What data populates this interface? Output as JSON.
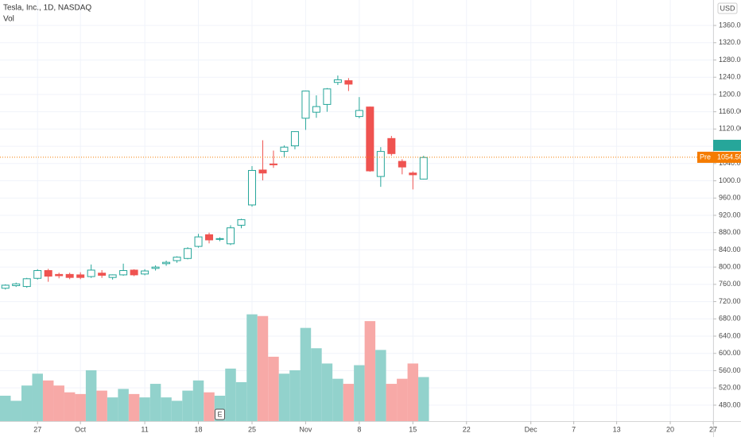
{
  "chart_data": {
    "type": "candlestick",
    "title": "Tesla, Inc., 1D, NASDAQ",
    "volume_label": "Vol",
    "currency": "USD",
    "x": [
      0,
      1,
      2,
      3,
      4,
      5,
      6,
      7,
      8,
      9,
      10,
      11,
      12,
      13,
      14,
      15,
      16,
      17,
      18,
      19,
      20,
      21,
      22,
      23,
      24,
      25,
      26,
      27,
      28,
      29,
      30,
      31,
      32,
      33,
      34,
      35,
      36,
      37,
      38,
      39
    ],
    "open": [
      751,
      757,
      755,
      774,
      792,
      783,
      783,
      782,
      778,
      786,
      776,
      782,
      793,
      784,
      797,
      808,
      815,
      820,
      848,
      875,
      865,
      854,
      897,
      944,
      1025,
      1039,
      1068,
      1081,
      1145,
      1159,
      1177,
      1228,
      1232,
      1149,
      1171,
      1010,
      1098,
      1045,
      1018,
      1004
    ],
    "high": [
      760,
      764,
      775,
      795,
      796,
      787,
      787,
      788,
      806,
      793,
      783,
      808,
      795,
      795,
      804,
      815,
      825,
      846,
      877,
      880,
      869,
      897,
      912,
      1034,
      1094,
      1070,
      1082,
      1115,
      1209,
      1198,
      1215,
      1244,
      1238,
      1194,
      1172,
      1078,
      1104,
      1050,
      1022,
      1058
    ],
    "low": [
      748,
      754,
      752,
      771,
      766,
      774,
      772,
      772,
      775,
      775,
      771,
      780,
      779,
      781,
      792,
      803,
      810,
      818,
      845,
      855,
      860,
      851,
      890,
      940,
      1001,
      1030,
      1054,
      1073,
      1118,
      1146,
      1160,
      1222,
      1208,
      1145,
      1021,
      986,
      1058,
      1015,
      980,
      1003
    ],
    "close": [
      758,
      761,
      773,
      792,
      779,
      780,
      776,
      776,
      793,
      781,
      782,
      792,
      782,
      791,
      800,
      811,
      823,
      843,
      870,
      863,
      866,
      891,
      910,
      1024,
      1018,
      1037,
      1078,
      1114,
      1208,
      1172,
      1213,
      1234,
      1224,
      1163,
      1023,
      1068,
      1063,
      1032,
      1014,
      1054
    ],
    "volume": [
      15,
      12,
      21,
      28,
      24,
      21,
      17,
      16,
      30,
      18,
      14,
      19,
      16,
      14,
      22,
      14,
      12,
      18,
      24,
      17,
      15,
      31,
      23,
      63,
      62,
      38,
      28,
      30,
      55,
      43,
      34,
      25,
      22,
      33,
      59,
      42,
      22,
      25,
      34,
      26
    ],
    "volume_ylim": [
      0,
      75
    ],
    "up_color": "#26a69a",
    "down_color": "#ef5350",
    "volume_up_color": "#92d2cc",
    "volume_down_color": "#f7a9a7",
    "xlim": [
      -0.5,
      66
    ],
    "xticks": [
      {
        "value": 3,
        "label": "27"
      },
      {
        "value": 7,
        "label": "Oct"
      },
      {
        "value": 13,
        "label": "11"
      },
      {
        "value": 18,
        "label": "18"
      },
      {
        "value": 23,
        "label": "25"
      },
      {
        "value": 28,
        "label": "Nov"
      },
      {
        "value": 33,
        "label": "8"
      },
      {
        "value": 38,
        "label": "15"
      },
      {
        "value": 43,
        "label": "22"
      },
      {
        "value": 49,
        "label": "Dec"
      },
      {
        "value": 53,
        "label": "7"
      },
      {
        "value": 57,
        "label": "13"
      },
      {
        "value": 62,
        "label": "20"
      },
      {
        "value": 66,
        "label": "27"
      }
    ],
    "ylim": [
      443,
      1419
    ],
    "yticks": [
      {
        "value": 480,
        "label": "480.00"
      },
      {
        "value": 520,
        "label": "520.00"
      },
      {
        "value": 560,
        "label": "560.00"
      },
      {
        "value": 600,
        "label": "600.00"
      },
      {
        "value": 640,
        "label": "640.00"
      },
      {
        "value": 680,
        "label": "680.00"
      },
      {
        "value": 720,
        "label": "720.00"
      },
      {
        "value": 760,
        "label": "760.00"
      },
      {
        "value": 800,
        "label": "800.00"
      },
      {
        "value": 840,
        "label": "840.00"
      },
      {
        "value": 880,
        "label": "880.00"
      },
      {
        "value": 920,
        "label": "920.00"
      },
      {
        "value": 960,
        "label": "960.00"
      },
      {
        "value": 1000,
        "label": "1000.00"
      },
      {
        "value": 1040,
        "label": "1040.00"
      },
      {
        "value": 1080,
        "label": "1080.00"
      },
      {
        "value": 1120,
        "label": "1120.00"
      },
      {
        "value": 1160,
        "label": "1160.00"
      },
      {
        "value": 1200,
        "label": "1200.00"
      },
      {
        "value": 1240,
        "label": "1240.00"
      },
      {
        "value": 1280,
        "label": "1280.00"
      },
      {
        "value": 1320,
        "label": "1320.00"
      },
      {
        "value": 1360,
        "label": "1360.00"
      }
    ],
    "grid": true,
    "last_price": {
      "label": "Pre",
      "value": 1054.5,
      "value_label": "1054.50",
      "color": "#f57c00"
    },
    "earnings_marker": {
      "x": 20,
      "label": "E"
    }
  }
}
